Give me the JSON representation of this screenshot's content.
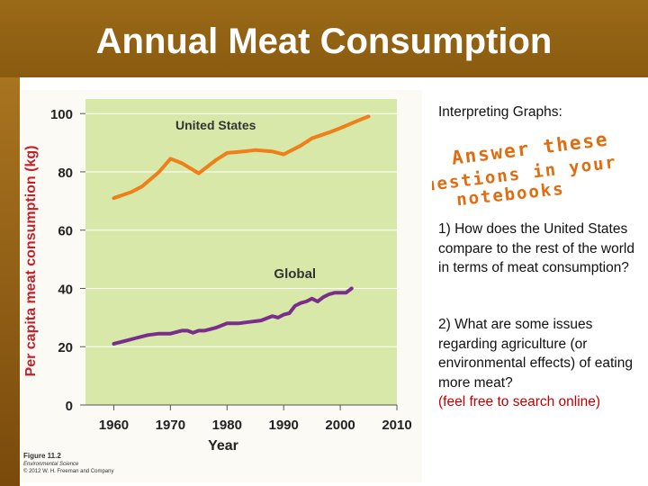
{
  "slide": {
    "title": "Annual Meat Consumption",
    "colors": {
      "title_bar": "#8f6014",
      "title_text": "#ffffff",
      "accent_red": "#c00000"
    }
  },
  "sidebar": {
    "heading": "Interpreting Graphs:",
    "stamp_lines": [
      "Answer these",
      "questions in your",
      "notebooks"
    ],
    "stamp_color": "#e06c10",
    "question1": "1) How does the United States compare to the rest of the world in terms of meat consumption?",
    "question2": "2) What are some issues regarding agriculture (or environmental effects) of eating more meat?",
    "question2_hint": "(feel free to search online)"
  },
  "figure": {
    "label": "Figure 11.2",
    "source": "Environmental Science",
    "copyright": "© 2012 W. H. Freeman and Company"
  },
  "chart_data": {
    "type": "line",
    "title": "",
    "xlabel": "Year",
    "ylabel": "Per capita meat consumption (kg)",
    "xlim": [
      1955,
      2010
    ],
    "ylim": [
      0,
      105
    ],
    "xticks": [
      1960,
      1970,
      1980,
      1990,
      2000,
      2010
    ],
    "yticks": [
      0,
      20,
      40,
      60,
      80,
      100
    ],
    "grid": true,
    "background": "#d8e8a8",
    "series": [
      {
        "name": "United States",
        "color": "#f07f1a",
        "x": [
          1960,
          1963,
          1965,
          1968,
          1970,
          1972,
          1975,
          1978,
          1980,
          1983,
          1985,
          1988,
          1990,
          1993,
          1995,
          1998,
          2000,
          2003,
          2005
        ],
        "values": [
          71,
          73,
          75,
          80,
          84.5,
          83,
          79.5,
          84,
          86.5,
          87,
          87.5,
          87,
          86,
          89,
          91.5,
          93.5,
          95,
          97.5,
          99
        ]
      },
      {
        "name": "Global",
        "color": "#7a2e8c",
        "x": [
          1960,
          1962,
          1964,
          1966,
          1968,
          1970,
          1972,
          1973,
          1974,
          1975,
          1976,
          1978,
          1980,
          1982,
          1984,
          1986,
          1988,
          1989,
          1990,
          1991,
          1992,
          1993,
          1994,
          1995,
          1996,
          1997,
          1998,
          1999,
          2000,
          2001,
          2002
        ],
        "values": [
          21,
          22,
          23,
          24,
          24.5,
          24.5,
          25.5,
          25.5,
          24.8,
          25.5,
          25.5,
          26.5,
          28,
          28,
          28.5,
          29,
          30.5,
          30,
          31,
          31.5,
          34,
          35,
          35.5,
          36.5,
          35.5,
          37,
          38,
          38.5,
          38.5,
          38.5,
          40
        ]
      }
    ]
  }
}
